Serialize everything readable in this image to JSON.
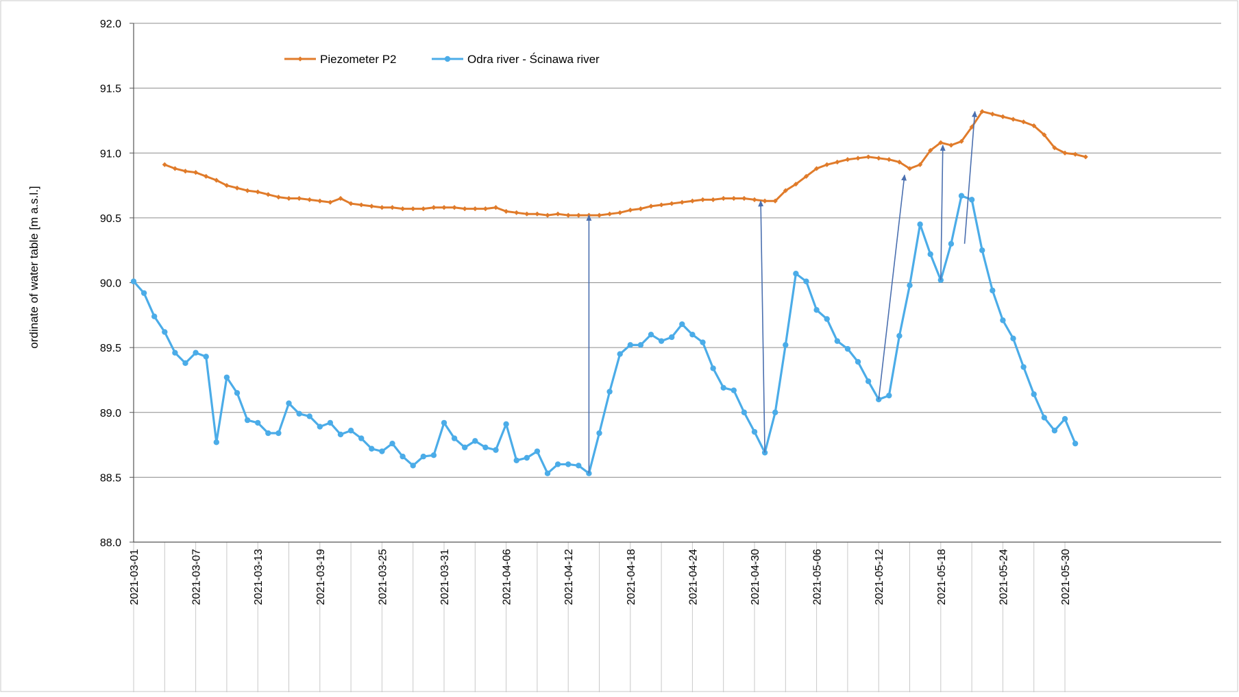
{
  "chart_data": {
    "type": "line",
    "title": "",
    "xlabel": "",
    "ylabel": "ordinate of water table [m a.s.l.]",
    "ylim": [
      88.0,
      92.0
    ],
    "yticks": [
      "88.0",
      "88.5",
      "89.0",
      "89.5",
      "90.0",
      "90.5",
      "91.0",
      "91.5",
      "92.0"
    ],
    "xrange": [
      "2021-03-01",
      "2021-05-31"
    ],
    "xticks": [
      "2021-03-01",
      "2021-03-07",
      "2021-03-13",
      "2021-03-19",
      "2021-03-25",
      "2021-03-31",
      "2021-04-06",
      "2021-04-12",
      "2021-04-18",
      "2021-04-24",
      "2021-04-30",
      "2021-05-06",
      "2021-05-12",
      "2021-05-18",
      "2021-05-24",
      "2021-05-30"
    ],
    "grid": "horizontal",
    "legend_position": "top-left",
    "series": [
      {
        "name": "Piezometer P2",
        "color": "#E07B2A",
        "marker": "diamond",
        "x_start": "2021-03-04",
        "values": [
          90.91,
          90.88,
          90.86,
          90.85,
          90.82,
          90.79,
          90.75,
          90.73,
          90.71,
          90.7,
          90.68,
          90.66,
          90.65,
          90.65,
          90.64,
          90.63,
          90.62,
          90.65,
          90.61,
          90.6,
          90.59,
          90.58,
          90.58,
          90.57,
          90.57,
          90.57,
          90.58,
          90.58,
          90.58,
          90.57,
          90.57,
          90.57,
          90.58,
          90.55,
          90.54,
          90.53,
          90.53,
          90.52,
          90.53,
          90.52,
          90.52,
          90.52,
          90.52,
          90.53,
          90.54,
          90.56,
          90.57,
          90.59,
          90.6,
          90.61,
          90.62,
          90.63,
          90.64,
          90.64,
          90.65,
          90.65,
          90.65,
          90.64,
          90.63,
          90.63,
          90.71,
          90.76,
          90.82,
          90.88,
          90.91,
          90.93,
          90.95,
          90.96,
          90.97,
          90.96,
          90.95,
          90.93,
          90.88,
          90.91,
          91.02,
          91.08,
          91.06,
          91.09,
          91.2,
          91.32,
          91.3,
          91.28,
          91.26,
          91.24,
          91.21,
          91.14,
          91.04,
          91.0,
          90.99,
          90.97
        ]
      },
      {
        "name": "Odra river - Ścinawa river",
        "color": "#4BACE8",
        "marker": "circle",
        "x_start": "2021-03-01",
        "values": [
          90.01,
          89.92,
          89.74,
          89.62,
          89.46,
          89.38,
          89.46,
          89.43,
          88.77,
          89.27,
          89.15,
          88.94,
          88.92,
          88.84,
          88.84,
          89.07,
          88.99,
          88.97,
          88.89,
          88.92,
          88.83,
          88.86,
          88.8,
          88.72,
          88.7,
          88.76,
          88.66,
          88.59,
          88.66,
          88.67,
          88.92,
          88.8,
          88.73,
          88.78,
          88.73,
          88.71,
          88.91,
          88.63,
          88.65,
          88.7,
          88.53,
          88.6,
          88.6,
          88.59,
          88.53,
          88.84,
          89.16,
          89.45,
          89.52,
          89.52,
          89.6,
          89.55,
          89.58,
          89.68,
          89.6,
          89.54,
          89.34,
          89.19,
          89.17,
          89.0,
          88.85,
          88.69,
          89.0,
          89.52,
          90.07,
          90.01,
          89.79,
          89.72,
          89.55,
          89.49,
          89.39,
          89.24,
          89.1,
          89.13,
          89.59,
          89.98,
          90.45,
          90.22,
          90.02,
          90.3,
          90.67,
          90.64,
          90.25,
          89.94,
          89.71,
          89.57,
          89.35,
          89.14,
          88.96,
          88.86,
          88.95,
          88.76
        ]
      }
    ],
    "annotations": [
      {
        "type": "arrow",
        "from": [
          "2021-04-14",
          88.53
        ],
        "to": [
          "2021-04-14",
          90.52
        ]
      },
      {
        "type": "arrow",
        "from": [
          "2021-05-01",
          88.69
        ],
        "to": [
          "2021-04-30.6",
          90.63
        ]
      },
      {
        "type": "arrow",
        "from": [
          "2021-05-12",
          89.1
        ],
        "to": [
          "2021-05-14.5",
          90.83
        ]
      },
      {
        "type": "arrow",
        "from": [
          "2021-05-18",
          90.02
        ],
        "to": [
          "2021-05-18.2",
          91.06
        ]
      },
      {
        "type": "arrow",
        "from": [
          "2021-05-20.3",
          90.3
        ],
        "to": [
          "2021-05-21.3",
          91.32
        ]
      }
    ]
  }
}
